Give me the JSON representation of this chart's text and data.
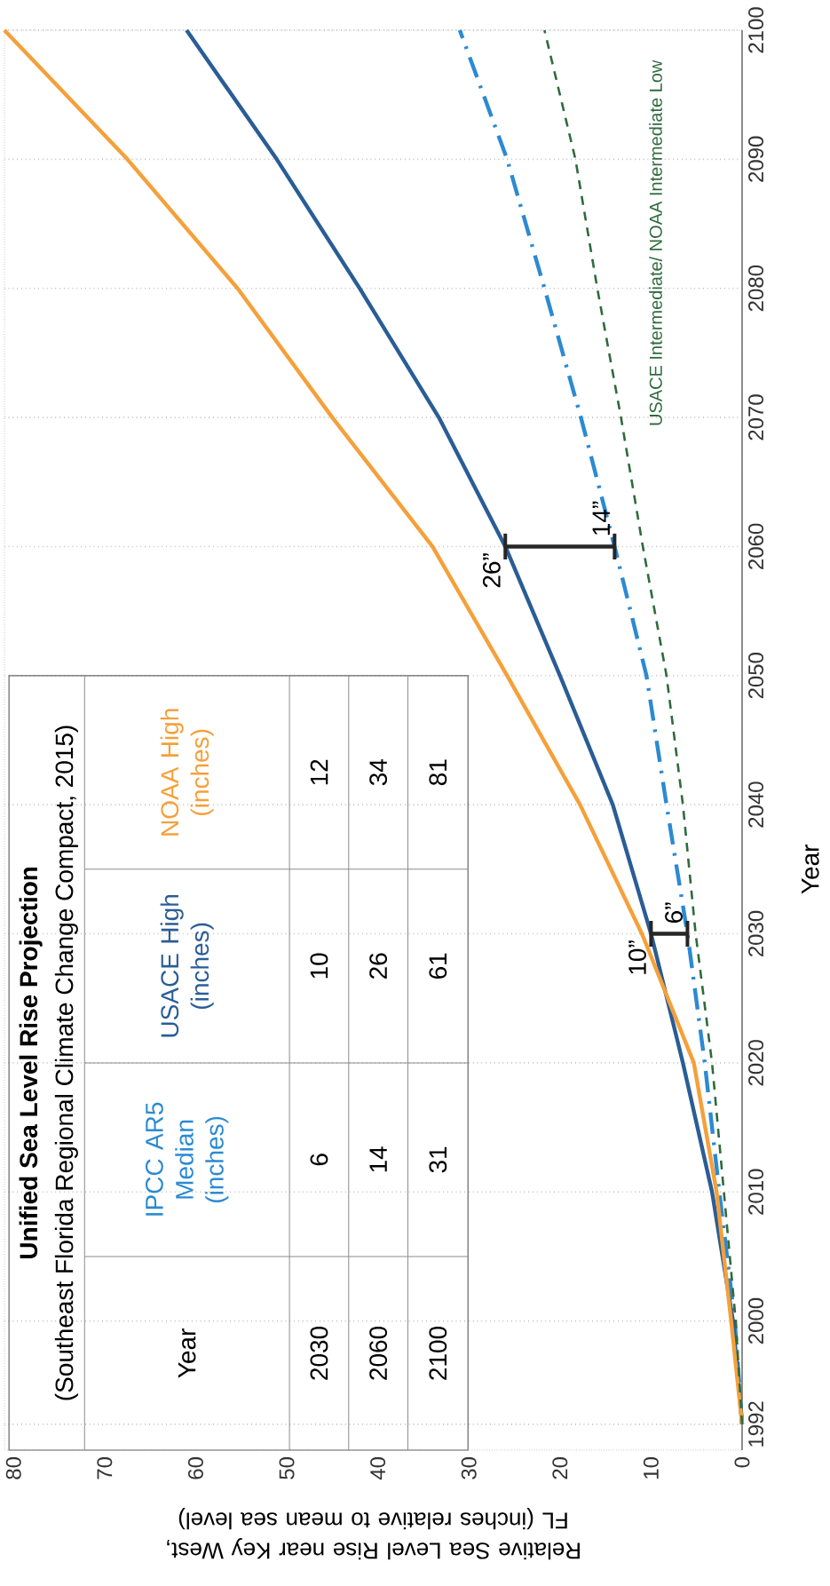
{
  "chart_data": {
    "type": "line",
    "title": "Unified Sea Level Rise Projection",
    "subtitle": "(Southeast Florida Regional Climate Change Compact, 2015)",
    "xlabel": "Relative Sea Level Rise near Key West, FL (inches relative to mean sea level)",
    "ylabel": "Year",
    "xlim": [
      81,
      0
    ],
    "ylim": [
      1990,
      2100
    ],
    "xticks": [
      0,
      10,
      20,
      30,
      40,
      50,
      60,
      70,
      80
    ],
    "yticks": [
      1992,
      2000,
      2010,
      2020,
      2030,
      2040,
      2050,
      2060,
      2070,
      2080,
      2090,
      2100
    ],
    "grid": "y",
    "series": [
      {
        "name": "IPCC AR5 Median (inches)",
        "color": "#2b8ad2",
        "line_style": "dashdot",
        "x": [
          0,
          0.8,
          2.5,
          4.1,
          6,
          8.3,
          10.5,
          14,
          17.7,
          21.7,
          25.8,
          31
        ],
        "values": [
          1992,
          2000,
          2010,
          2020,
          2030,
          2040,
          2050,
          2060,
          2070,
          2080,
          2090,
          2100
        ]
      },
      {
        "name": "USACE High (inches)",
        "color": "#2a5d96",
        "line_style": "solid",
        "x": [
          0,
          1.0,
          3.3,
          6.5,
          10,
          14.2,
          20,
          26,
          33.3,
          42,
          51.1,
          61
        ],
        "values": [
          1992,
          2000,
          2010,
          2020,
          2030,
          2040,
          2050,
          2060,
          2070,
          2080,
          2090,
          2100
        ]
      },
      {
        "name": "NOAA High (inches)",
        "color": "#f5a03a",
        "line_style": "solid",
        "x": [
          0,
          1.2,
          2.8,
          5.3,
          11,
          17.8,
          25.8,
          34,
          45,
          55.4,
          67.5,
          81
        ],
        "values": [
          1992,
          2000,
          2010,
          2020,
          2030,
          2040,
          2050,
          2060,
          2070,
          2080,
          2090,
          2100
        ]
      },
      {
        "name": "USACE Intermediate/ NOAA Intermediate Low",
        "color": "#2f6b3c",
        "line_style": "dashed",
        "x": [
          0,
          0.7,
          2.0,
          3.3,
          5.1,
          6.5,
          8.3,
          10.9,
          13.3,
          15.9,
          18.3,
          21.7
        ],
        "values": [
          1992,
          2000,
          2010,
          2020,
          2030,
          2040,
          2050,
          2060,
          2070,
          2080,
          2090,
          2100
        ]
      }
    ],
    "annotations": [
      "Year",
      "2030",
      "6",
      "10",
      "12",
      "2060",
      "14",
      "26",
      "34",
      "2100",
      "31",
      "61",
      "81",
      {
        "text": "10”",
        "x": 10,
        "y": 2030
      },
      {
        "text": "6”",
        "x": 6,
        "y": 2030
      },
      {
        "text": "26”",
        "x": 26,
        "y": 2060
      },
      {
        "text": "14”",
        "x": 14,
        "y": 2060
      }
    ]
  }
}
